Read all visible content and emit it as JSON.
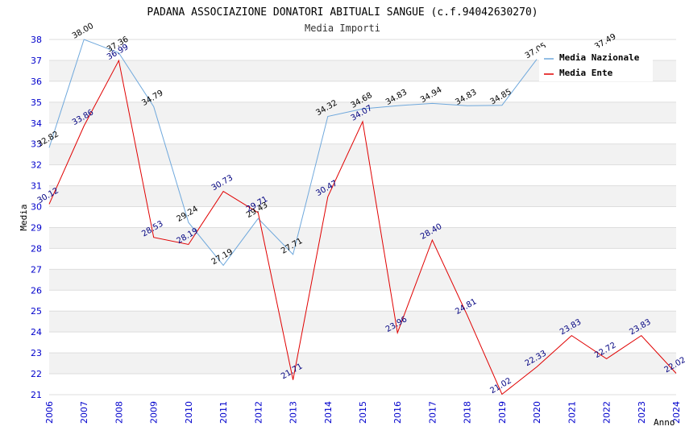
{
  "chart_data": {
    "type": "line",
    "title": "PADANA ASSOCIAZIONE DONATORI ABITUALI SANGUE (c.f.94042630270)",
    "subtitle": "Media Importi",
    "xlabel": "Anno",
    "ylabel": "Media",
    "ylim": [
      21,
      38
    ],
    "yticks": [
      "21",
      "22",
      "23",
      "24",
      "25",
      "26",
      "27",
      "28",
      "29",
      "30",
      "31",
      "32",
      "33",
      "34",
      "35",
      "36",
      "37",
      "38"
    ],
    "x": [
      "2006",
      "2007",
      "2008",
      "2009",
      "2010",
      "2011",
      "2012",
      "2013",
      "2014",
      "2015",
      "2016",
      "2017",
      "2018",
      "2019",
      "2020",
      "2021",
      "2022",
      "2023",
      "2024"
    ],
    "grid": true,
    "legend_position": "top-right",
    "series": [
      {
        "name": "Media Nazionale",
        "color": "#6fa8dc",
        "values": [
          32.82,
          38.0,
          37.36,
          34.79,
          29.24,
          27.19,
          29.43,
          27.71,
          34.32,
          34.68,
          34.83,
          34.94,
          34.83,
          34.85,
          37.05,
          null,
          37.49,
          null,
          null
        ],
        "labels": [
          "32.82",
          "38.00",
          "37.36",
          "34.79",
          "29.24",
          "27.19",
          "29.43",
          "27.71",
          "34.32",
          "34.68",
          "34.83",
          "34.94",
          "34.83",
          "34.85",
          "37.05",
          "",
          "37.49",
          "",
          ""
        ]
      },
      {
        "name": "Media Ente",
        "color": "#e00000",
        "values": [
          30.12,
          33.86,
          36.99,
          28.53,
          28.19,
          30.73,
          29.71,
          21.71,
          30.47,
          34.07,
          23.96,
          28.4,
          24.81,
          21.02,
          22.33,
          23.83,
          22.72,
          23.83,
          22.02
        ],
        "labels": [
          "30.12",
          "33.86",
          "36.99",
          "28.53",
          "28.19",
          "30.73",
          "29.71",
          "21.71",
          "30.47",
          "34.07",
          "23.96",
          "28.40",
          "24.81",
          "21.02",
          "22.33",
          "23.83",
          "22.72",
          "23.83",
          "22.02"
        ]
      }
    ]
  }
}
